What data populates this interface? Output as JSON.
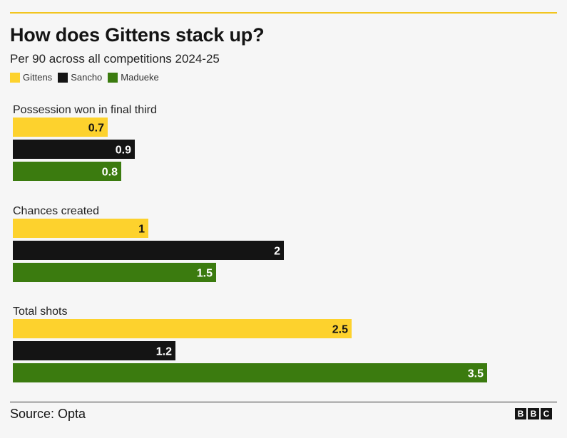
{
  "header": {
    "title": "How does Gittens stack up?",
    "subtitle": "Per 90 across all competitions 2024-25"
  },
  "legend": [
    {
      "label": "Gittens",
      "color": "#fdd22d"
    },
    {
      "label": "Sancho",
      "color": "#141414"
    },
    {
      "label": "Madueke",
      "color": "#3b7b0f"
    }
  ],
  "footer": {
    "source": "Source: Opta",
    "logo_letters": [
      "B",
      "B",
      "C"
    ]
  },
  "chart_data": {
    "type": "bar",
    "orientation": "horizontal",
    "title": "How does Gittens stack up?",
    "subtitle": "Per 90 across all competitions 2024-25",
    "categories": [
      "Possession won in final third",
      "Chances created",
      "Total shots"
    ],
    "series": [
      {
        "name": "Gittens",
        "color": "#fdd22d",
        "label_color": "#141414",
        "values": [
          0.7,
          1,
          2.5
        ],
        "labels": [
          "0.7",
          "1",
          "2.5"
        ]
      },
      {
        "name": "Sancho",
        "color": "#141414",
        "label_color": "#ffffff",
        "values": [
          0.9,
          2,
          1.2
        ],
        "labels": [
          "0.9",
          "2",
          "1.2"
        ]
      },
      {
        "name": "Madueke",
        "color": "#3b7b0f",
        "label_color": "#ffffff",
        "values": [
          0.8,
          1.5,
          3.5
        ],
        "labels": [
          "0.8",
          "1.5",
          "3.5"
        ]
      }
    ],
    "xlim": [
      0,
      3.5
    ],
    "grid": false,
    "legend_position": "top-left"
  }
}
